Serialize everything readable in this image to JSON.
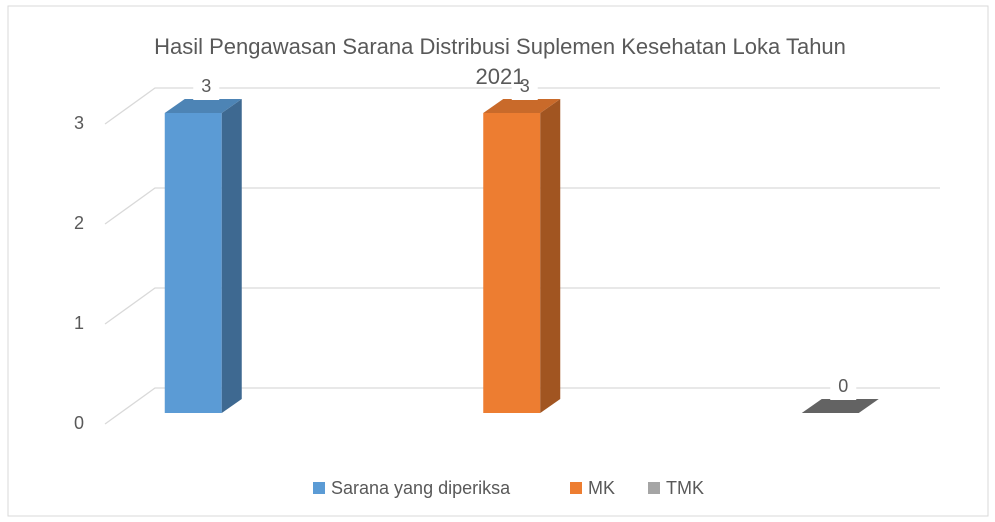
{
  "chart_data": {
    "type": "bar3d",
    "title": "Hasil Pengawasan Sarana Distribusi Suplemen Kesehatan Loka Tahun 2021",
    "series": [
      {
        "name": "Sarana yang diperiksa",
        "color": "#5b9bd5",
        "values": [
          3
        ]
      },
      {
        "name": "MK",
        "color": "#ed7d31",
        "values": [
          3
        ]
      },
      {
        "name": "TMK",
        "color": "#a5a5a5",
        "values": [
          0
        ]
      }
    ],
    "ylim": [
      0,
      3
    ],
    "yticks": [
      0,
      1,
      2,
      3
    ],
    "grid": true,
    "legend": "bottom"
  }
}
